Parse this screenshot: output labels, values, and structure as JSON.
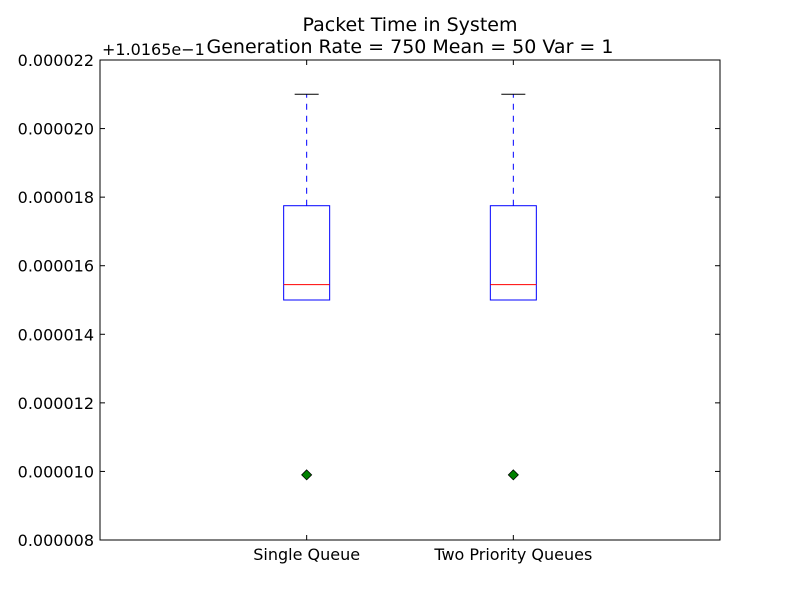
{
  "chart_data": {
    "type": "box",
    "title": "Packet Time in System",
    "subtitle": "Generation Rate = 750 Mean = 50 Var = 1",
    "y_offset_label": "+1.0165e−1",
    "ylim": [
      8e-06,
      2.2e-05
    ],
    "yticks": [
      "0.000008",
      "0.000010",
      "0.000012",
      "0.000014",
      "0.000016",
      "0.000018",
      "0.000020",
      "0.000022"
    ],
    "categories": [
      "Single Queue",
      "Two Priority Queues"
    ],
    "boxes": [
      {
        "q1": 1.5e-05,
        "median": 1.545e-05,
        "q3": 1.775e-05,
        "whisker_low": 1.5e-05,
        "whisker_high": 2.1e-05,
        "mean": 9.9e-06
      },
      {
        "q1": 1.5e-05,
        "median": 1.545e-05,
        "q3": 1.775e-05,
        "whisker_low": 1.5e-05,
        "whisker_high": 2.1e-05,
        "mean": 9.9e-06
      }
    ],
    "colors": {
      "box": "#0000ff",
      "median": "#ff0000",
      "whisker": "#0000ff",
      "cap": "#000000",
      "mean_marker": "#008000"
    },
    "grid": false
  }
}
